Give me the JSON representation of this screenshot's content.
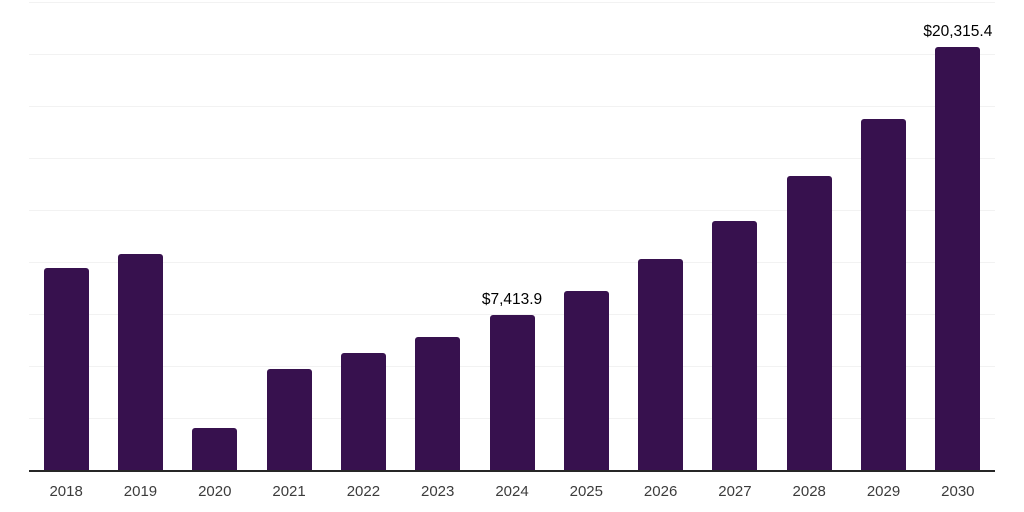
{
  "chart_data": {
    "type": "bar",
    "title": "",
    "xlabel": "",
    "ylabel": "",
    "categories": [
      "2018",
      "2019",
      "2020",
      "2021",
      "2022",
      "2023",
      "2024",
      "2025",
      "2026",
      "2027",
      "2028",
      "2029",
      "2030"
    ],
    "values": [
      9700,
      10370,
      2000,
      4840,
      5610,
      6380,
      7413.9,
      8590,
      10130,
      11960,
      14130,
      16870,
      20315.4
    ],
    "data_labels": [
      "",
      "",
      "",
      "",
      "",
      "",
      "$7,413.9",
      "",
      "",
      "",
      "",
      "",
      "$20,315.4"
    ],
    "labeled_points": [
      {
        "category": "2024",
        "label": "$7,413.9",
        "value": 7413.9
      },
      {
        "category": "2030",
        "label": "$20,315.4",
        "value": 20315.4
      }
    ],
    "ylim": [
      0,
      22500
    ],
    "gridline_step": 2500,
    "grid": "horizontal-only",
    "y_axis_tick_labels_visible": false,
    "legend_position": "none"
  },
  "style": {
    "bar_color": "#37114e",
    "gridline_color": "#f2f2f2",
    "axis_line_color": "#262626",
    "tick_label_color": "#3c3c3c",
    "data_label_color": "#000000",
    "background": "#ffffff"
  }
}
